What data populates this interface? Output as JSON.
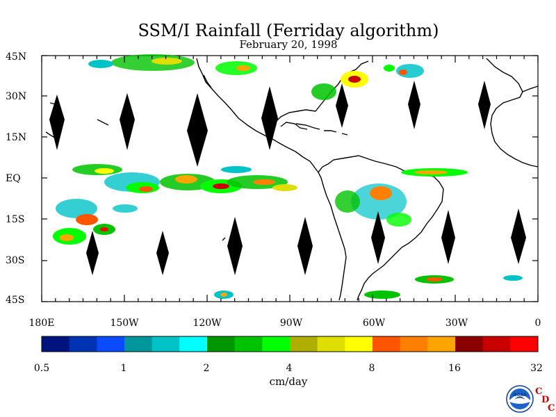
{
  "title": "SSM/I Rainfall (Ferriday algorithm)",
  "subtitle": "February 20, 1998",
  "units": "cm/day",
  "latitude_labels": [
    "45N",
    "30N",
    "15N",
    "EQ",
    "15S",
    "30S",
    "45S"
  ],
  "longitude_labels": [
    "180E",
    "150W",
    "120W",
    "90W",
    "60W",
    "30W",
    "0"
  ],
  "colorbar": {
    "tick_labels": [
      "0.5",
      "1",
      "2",
      "4",
      "8",
      "16",
      "32"
    ],
    "colors": [
      "#00137e",
      "#0032b4",
      "#0a4bff",
      "#00979c",
      "#00c3c8",
      "#00ffff",
      "#009600",
      "#00c300",
      "#00ff00",
      "#afaf00",
      "#dede00",
      "#ffff00",
      "#ff5500",
      "#ff7f00",
      "#ffa500",
      "#8b0000",
      "#c80000",
      "#ff0000"
    ]
  },
  "logos": {
    "noaa_text": "NOAA",
    "cdc_letters": [
      "C",
      "D",
      "C"
    ]
  },
  "icons": {
    "noaa": "noaa-logo-icon",
    "data_gap": "diamond-gap-icon"
  }
}
